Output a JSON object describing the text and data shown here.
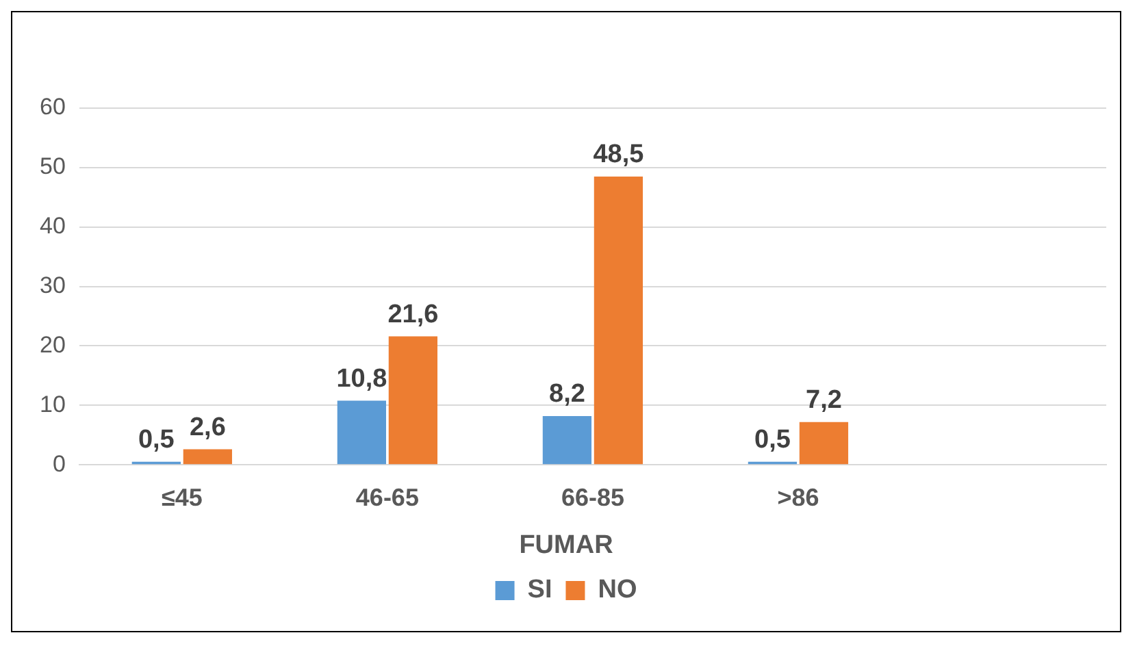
{
  "chart_data": {
    "type": "bar",
    "categories": [
      "≤45",
      "46-65",
      "66-85",
      ">86",
      null
    ],
    "series": [
      {
        "name": "SI",
        "color": "#5b9bd5",
        "values": [
          0.5,
          10.8,
          8.2,
          0.5,
          null
        ],
        "value_labels": [
          "0,5",
          "10,8",
          "8,2",
          "0,5",
          null
        ]
      },
      {
        "name": "NO",
        "color": "#ed7d31",
        "values": [
          2.6,
          21.6,
          48.5,
          7.2,
          null
        ],
        "value_labels": [
          "2,6",
          "21,6",
          "48,5",
          "7,2",
          null
        ]
      }
    ],
    "legend_title": "FUMAR",
    "legend": "bottom",
    "ylim": [
      0,
      60
    ],
    "yticks": [
      0,
      10,
      20,
      30,
      40,
      50,
      60
    ],
    "grid": "y"
  }
}
